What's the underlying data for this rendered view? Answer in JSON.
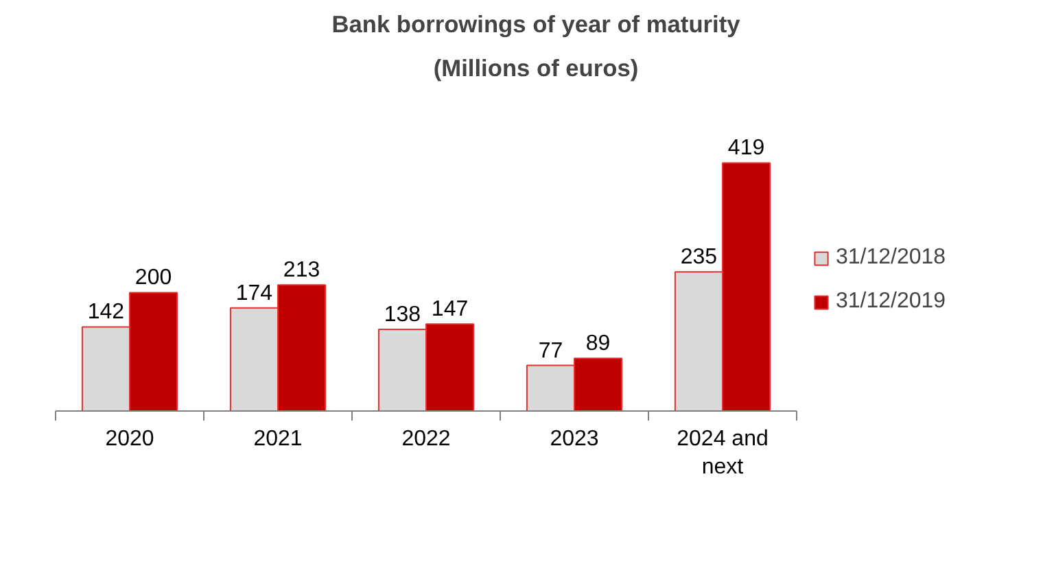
{
  "chart_data": {
    "type": "bar",
    "title": "Bank borrowings of year of maturity",
    "subtitle": "(Millions of euros)",
    "categories": [
      "2020",
      "2021",
      "2022",
      "2023",
      "2024 and next"
    ],
    "series": [
      {
        "name": "31/12/2018",
        "color": "#d9d9d9",
        "values": [
          142,
          174,
          138,
          77,
          235
        ]
      },
      {
        "name": "31/12/2019",
        "color": "#c00000",
        "values": [
          200,
          213,
          147,
          89,
          419
        ]
      }
    ],
    "data_labels": true,
    "legend": "right",
    "grid": false
  }
}
